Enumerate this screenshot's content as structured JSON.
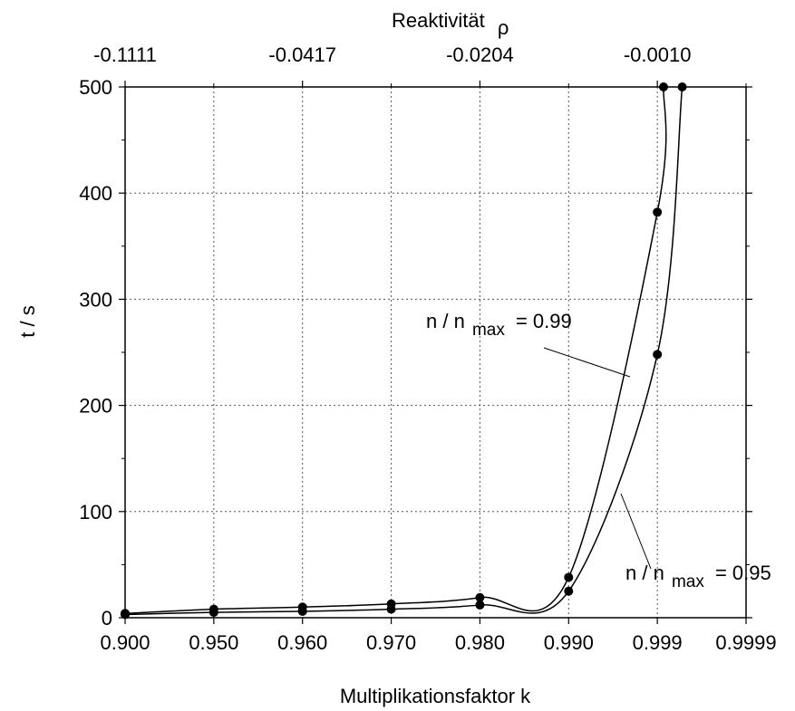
{
  "chart_data": {
    "type": "line",
    "title": "",
    "xlabel": "Multiplikationsfaktor k",
    "ylabel": "t / s",
    "top_axis_label_text": "Reaktivität",
    "top_axis_label_symbol": "ρ",
    "x_scale": "categorical (equally spaced tick labels)",
    "categories": [
      "0.900",
      "0.950",
      "0.960",
      "0.970",
      "0.980",
      "0.990",
      "0.999",
      "0.9999"
    ],
    "top_ticks": [
      "-0.1111",
      "-0.0417",
      "-0.0204",
      "-0.0010"
    ],
    "y_ticks": [
      "0",
      "100",
      "200",
      "300",
      "400",
      "500"
    ],
    "ylim": [
      0,
      500
    ],
    "grid": true,
    "legend": "none (inline annotations)",
    "series": [
      {
        "name": "n / n max = 0.99",
        "points": [
          {
            "x": "0.900",
            "y": 4
          },
          {
            "x": "0.950",
            "y": 8
          },
          {
            "x": "0.960",
            "y": 10
          },
          {
            "x": "0.970",
            "y": 13
          },
          {
            "x": "0.980",
            "y": 19
          },
          {
            "x": "0.990",
            "y": 38
          },
          {
            "x": "0.999",
            "y": 382
          },
          {
            "x": "0.999",
            "y": 500
          }
        ]
      },
      {
        "name": "n / n max = 0.95",
        "points": [
          {
            "x": "0.900",
            "y": 3
          },
          {
            "x": "0.950",
            "y": 5
          },
          {
            "x": "0.960",
            "y": 6
          },
          {
            "x": "0.970",
            "y": 8
          },
          {
            "x": "0.980",
            "y": 12
          },
          {
            "x": "0.990",
            "y": 25
          },
          {
            "x": "0.999",
            "y": 248
          },
          {
            "x": "0.999",
            "y": 500
          }
        ]
      }
    ],
    "annotations": [
      {
        "pre": "n / n",
        "sub": "max",
        "post": "= 0.99"
      },
      {
        "pre": "n / n",
        "sub": "max",
        "post": "= 0.95"
      }
    ]
  }
}
